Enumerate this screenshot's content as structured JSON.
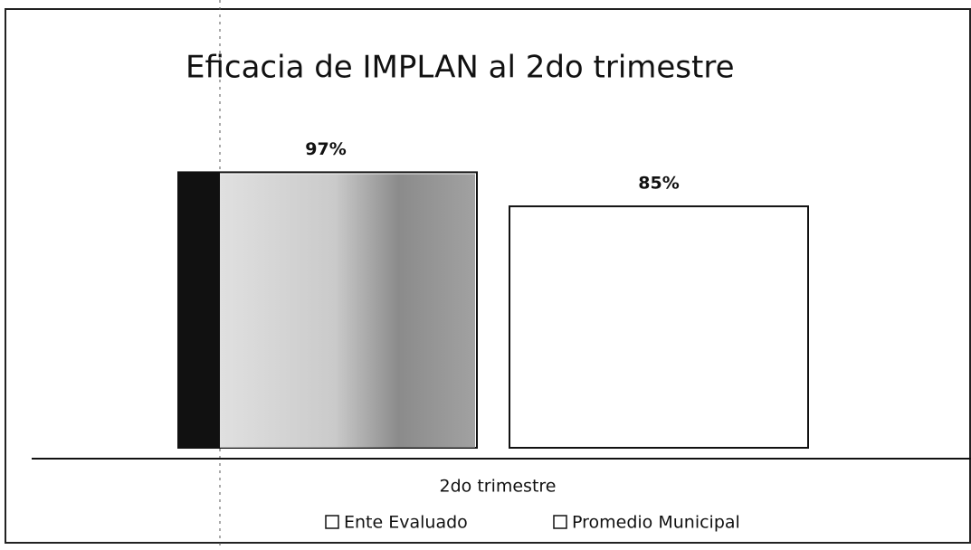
{
  "chart_data": {
    "type": "bar",
    "title": "Eficacia de IMPLAN al 2do trimestre",
    "categories": [
      "2do trimestre"
    ],
    "series": [
      {
        "name": "Ente Evaluado",
        "color": "#ffffff",
        "values": [
          97
        ],
        "value_labels": [
          "97%"
        ]
      },
      {
        "name": "Promedio Municipal",
        "color": "#ffffff",
        "values": [
          85
        ],
        "value_labels": [
          "85%"
        ]
      }
    ],
    "legend": "bottom"
  }
}
